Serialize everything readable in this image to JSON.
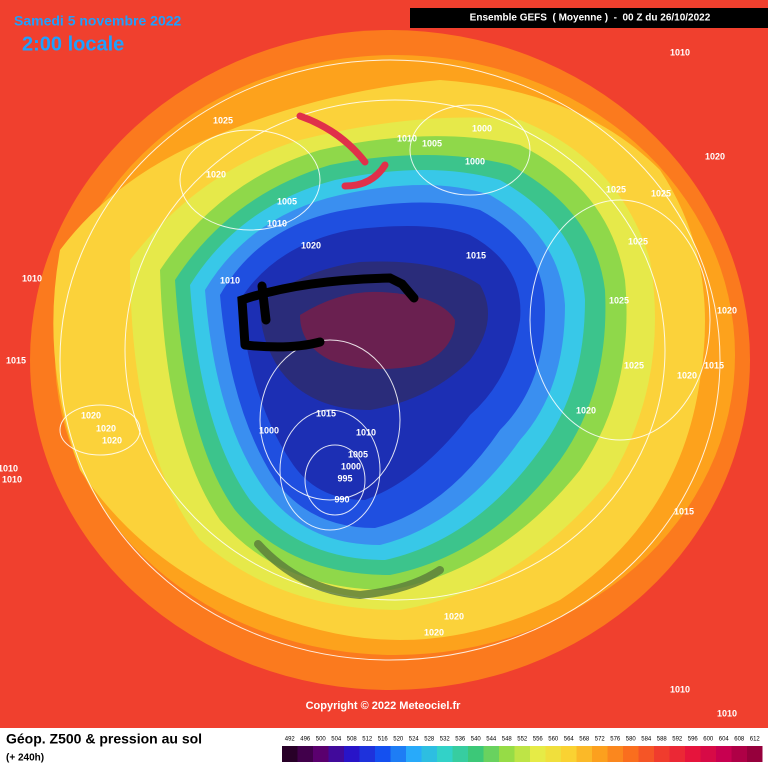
{
  "header": {
    "date": "Samedi 5 novembre 2022",
    "time": "2:00 locale",
    "run": "Ensemble GEFS  ( Moyenne )  -  00 Z du 26/10/2022"
  },
  "isobar_labels": [
    "1010",
    "1025",
    "1010",
    "1005",
    "1000",
    "1000",
    "1020",
    "1020",
    "1025",
    "1025",
    "1005",
    "1010",
    "1020",
    "1025",
    "1015",
    "1010",
    "1010",
    "1025",
    "1020",
    "1015",
    "1025",
    "1020",
    "1015",
    "1020",
    "1015",
    "1020",
    "1020",
    "1020",
    "1000",
    "1010",
    "1005",
    "1000",
    "995",
    "990",
    "1010",
    "1010",
    "1015",
    "1020",
    "1020",
    "1010",
    "1010"
  ],
  "copyright": "Copyright © 2022 Meteociel.fr",
  "legend": {
    "title": "Géop. Z500 & pression au sol",
    "lead": "(+ 240h)",
    "scale": [
      492,
      496,
      500,
      504,
      508,
      512,
      516,
      520,
      524,
      528,
      532,
      536,
      540,
      544,
      548,
      552,
      556,
      560,
      564,
      568,
      572,
      576,
      580,
      584,
      588,
      592,
      596,
      600,
      604,
      608,
      612
    ]
  }
}
